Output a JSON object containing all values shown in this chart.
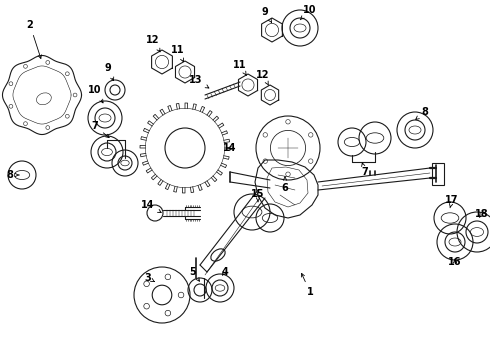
{
  "background": "#ffffff",
  "line_color": "#1a1a1a",
  "line_width": 0.8,
  "label_fontsize": 7,
  "label_fontweight": "bold",
  "figsize": [
    4.9,
    3.6
  ],
  "dpi": 100
}
